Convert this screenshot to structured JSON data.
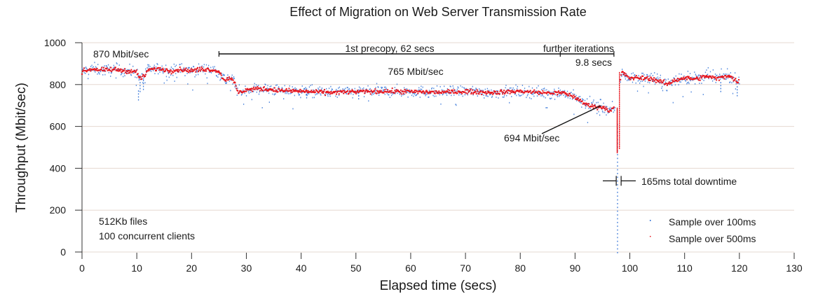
{
  "chart_data": {
    "type": "scatter",
    "title": "Effect of Migration on Web Server Transmission Rate",
    "xlabel": "Elapsed time (secs)",
    "ylabel": "Throughput (Mbit/sec)",
    "xlim": [
      0,
      130
    ],
    "ylim": [
      0,
      1000
    ],
    "xticks": [
      "0",
      "10",
      "20",
      "30",
      "40",
      "50",
      "60",
      "70",
      "80",
      "90",
      "100",
      "110",
      "120",
      "130"
    ],
    "yticks": [
      "0",
      "200",
      "400",
      "600",
      "800",
      "1000"
    ],
    "grid": "horizontal",
    "legend_position": "bottom-right",
    "series": [
      {
        "name": "Sample over 100ms",
        "color": "#3a78d8",
        "segments": [
          {
            "x_start": 0,
            "x_end": 25,
            "level": 870,
            "noise": 25
          },
          {
            "x_start": 25,
            "x_end": 28,
            "level": 830,
            "noise": 35
          },
          {
            "x_start": 28,
            "x_end": 92,
            "level": 765,
            "noise": 25
          },
          {
            "x_start": 92,
            "x_end": 97.3,
            "level": 694,
            "noise": 35
          },
          {
            "x_start": 97.3,
            "x_end": 98.2,
            "level": 0,
            "noise": 0
          },
          {
            "x_start": 98.2,
            "x_end": 120,
            "level": 825,
            "noise": 28
          }
        ]
      },
      {
        "name": "Sample over 500ms",
        "color": "#e8141c",
        "points": [
          [
            0,
            862
          ],
          [
            2,
            875
          ],
          [
            4,
            868
          ],
          [
            6,
            872
          ],
          [
            8,
            866
          ],
          [
            10,
            860
          ],
          [
            10.5,
            830
          ],
          [
            11.5,
            840
          ],
          [
            12,
            870
          ],
          [
            14,
            876
          ],
          [
            16,
            866
          ],
          [
            18,
            872
          ],
          [
            20,
            866
          ],
          [
            22,
            874
          ],
          [
            24,
            870
          ],
          [
            25,
            862
          ],
          [
            26,
            820
          ],
          [
            27,
            835
          ],
          [
            28,
            800
          ],
          [
            28.5,
            760
          ],
          [
            30,
            775
          ],
          [
            32,
            780
          ],
          [
            34,
            778
          ],
          [
            36,
            772
          ],
          [
            40,
            768
          ],
          [
            45,
            762
          ],
          [
            50,
            765
          ],
          [
            55,
            768
          ],
          [
            60,
            766
          ],
          [
            65,
            763
          ],
          [
            70,
            767
          ],
          [
            75,
            762
          ],
          [
            80,
            768
          ],
          [
            85,
            760
          ],
          [
            88,
            760
          ],
          [
            90,
            740
          ],
          [
            91,
            720
          ],
          [
            92,
            705
          ],
          [
            93,
            700
          ],
          [
            94,
            690
          ],
          [
            95,
            695
          ],
          [
            96,
            680
          ],
          [
            96.5,
            672
          ],
          [
            97.2,
            695
          ],
          [
            97.6,
            600
          ],
          [
            97.9,
            500
          ],
          [
            98.2,
            800
          ],
          [
            98.5,
            860
          ],
          [
            100,
            830
          ],
          [
            102,
            832
          ],
          [
            104,
            828
          ],
          [
            106,
            810
          ],
          [
            107,
            800
          ],
          [
            108,
            820
          ],
          [
            110,
            832
          ],
          [
            112,
            826
          ],
          [
            114,
            840
          ],
          [
            116,
            828
          ],
          [
            118,
            845
          ],
          [
            119.5,
            815
          ],
          [
            120,
            820
          ]
        ]
      }
    ],
    "annotations": {
      "initial_rate": "870 Mbit/sec",
      "precopy_rate": "765 Mbit/sec",
      "late_rate": "694 Mbit/sec",
      "precopy_label": "1st precopy, 62 secs",
      "precopy_range": [
        25,
        87.3
      ],
      "iterations_label": "further iterations",
      "iterations_duration": "9.8 secs",
      "iterations_range": [
        87.3,
        97.1
      ],
      "downtime_label": "165ms total downtime",
      "downtime_at": 97.9,
      "downtime_level": 340,
      "workload_line1": "512Kb files",
      "workload_line2": "100 concurrent clients"
    }
  }
}
